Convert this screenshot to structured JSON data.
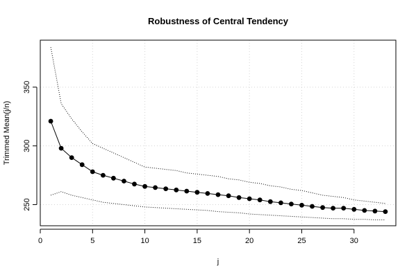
{
  "chart_data": {
    "type": "line",
    "title": "Robustness of Central Tendency",
    "xlabel": "j",
    "ylabel": "Trimmed Mean(j/n)",
    "xlim": [
      0,
      34
    ],
    "ylim": [
      232,
      390
    ],
    "xticks": [
      0,
      5,
      10,
      15,
      20,
      25,
      30
    ],
    "yticks": [
      250,
      300,
      350
    ],
    "grid": true,
    "series": [
      {
        "style": "solid-with-points",
        "x": [
          1,
          2,
          3,
          4,
          5,
          6,
          7,
          8,
          9,
          10,
          11,
          12,
          13,
          14,
          15,
          16,
          17,
          18,
          19,
          20,
          21,
          22,
          23,
          24,
          25,
          26,
          27,
          28,
          29,
          30,
          31,
          32,
          33
        ],
        "values": [
          321,
          298,
          290,
          284,
          278,
          275,
          272.5,
          270,
          267.5,
          265.5,
          264.5,
          263.5,
          262.5,
          261.5,
          260.5,
          259.5,
          258.5,
          257.5,
          256,
          255,
          254,
          252.5,
          251.5,
          250.5,
          249.5,
          248.5,
          247.5,
          247,
          247,
          246,
          245,
          244.5,
          244
        ]
      },
      {
        "style": "dotted",
        "x": [
          1,
          2,
          3,
          4,
          5,
          6,
          7,
          8,
          9,
          10,
          11,
          12,
          13,
          14,
          15,
          16,
          17,
          18,
          19,
          20,
          21,
          22,
          23,
          24,
          25,
          26,
          27,
          28,
          29,
          30,
          31,
          32,
          33
        ],
        "values": [
          384,
          336,
          323,
          312,
          302,
          298,
          294,
          290,
          286,
          282,
          281,
          280,
          279,
          277,
          276,
          275,
          274,
          272,
          271,
          269,
          268,
          266,
          265,
          263,
          262,
          260,
          258,
          257,
          256,
          254,
          253,
          252,
          251
        ]
      },
      {
        "style": "dotted",
        "x": [
          1,
          2,
          3,
          4,
          5,
          6,
          7,
          8,
          9,
          10,
          11,
          12,
          13,
          14,
          15,
          16,
          17,
          18,
          19,
          20,
          21,
          22,
          23,
          24,
          25,
          26,
          27,
          28,
          29,
          30,
          31,
          32,
          33
        ],
        "values": [
          258,
          261,
          258,
          256,
          254,
          252,
          251,
          250,
          249,
          248,
          247.5,
          247,
          246.5,
          246,
          245.5,
          245,
          244,
          243.5,
          243,
          242,
          241.5,
          241,
          240.5,
          240,
          239.5,
          239,
          238.5,
          238,
          238,
          237.5,
          237.5,
          237,
          237
        ]
      }
    ]
  }
}
